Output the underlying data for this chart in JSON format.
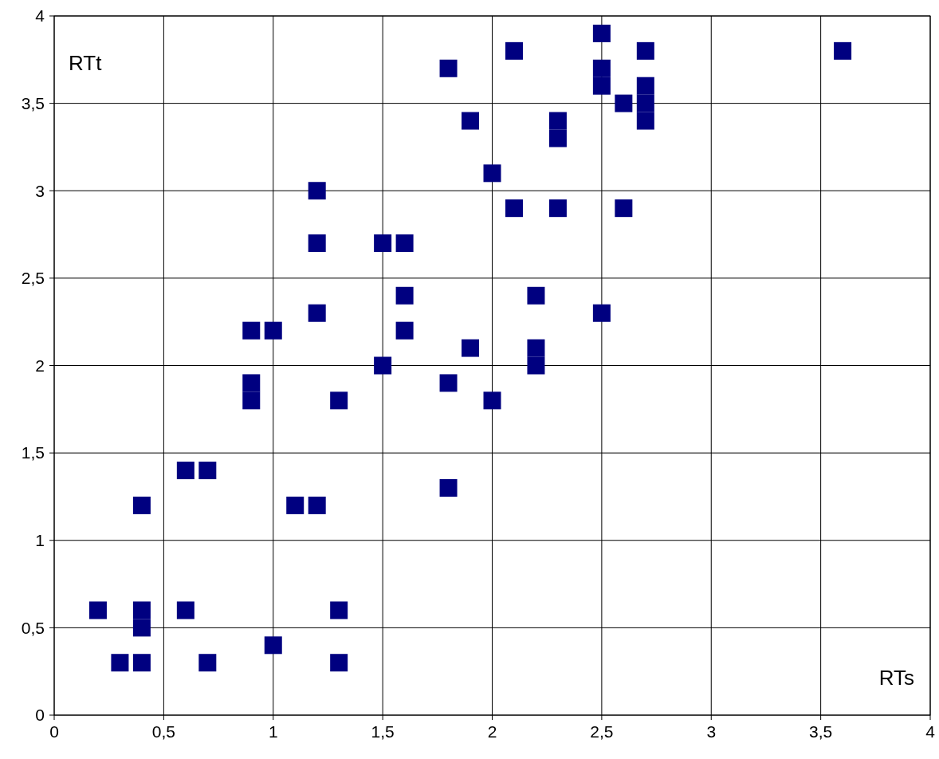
{
  "chart_data": {
    "type": "scatter",
    "xlabel": "RTs",
    "ylabel": "RTt",
    "marker": "square",
    "grid": true,
    "xlim": [
      0,
      4
    ],
    "ylim": [
      0,
      4
    ],
    "xticks": [
      0,
      {
        "value": 0.5,
        "label": "0,5"
      },
      1,
      {
        "value": 1.5,
        "label": "1,5"
      },
      2,
      {
        "value": 2.5,
        "label": "2,5"
      },
      3,
      {
        "value": 3.5,
        "label": "3,5"
      },
      4
    ],
    "yticks": [
      0,
      {
        "value": 0.5,
        "label": "0,5"
      },
      1,
      {
        "value": 1.5,
        "label": "1,5"
      },
      2,
      {
        "value": 2.5,
        "label": "2,5"
      },
      3,
      {
        "value": 3.5,
        "label": "3,5"
      },
      4
    ],
    "series": [
      {
        "color": "#000080",
        "x": [
          0.2,
          0.3,
          0.4,
          0.4,
          0.4,
          0.4,
          0.6,
          0.6,
          0.7,
          0.7,
          0.9,
          0.9,
          0.9,
          1.0,
          1.0,
          1.1,
          1.2,
          1.2,
          1.2,
          1.2,
          1.3,
          1.3,
          1.3,
          1.5,
          1.5,
          1.6,
          1.6,
          1.6,
          1.8,
          1.8,
          1.8,
          1.9,
          1.9,
          2.0,
          2.0,
          2.1,
          2.1,
          2.2,
          2.2,
          2.2,
          2.3,
          2.3,
          2.3,
          2.5,
          2.5,
          2.5,
          2.5,
          2.6,
          2.6,
          2.7,
          2.7,
          2.7,
          2.7,
          3.6
        ],
        "values": [
          0.6,
          0.3,
          0.3,
          0.5,
          0.6,
          1.2,
          0.6,
          1.4,
          1.4,
          0.3,
          2.2,
          1.8,
          1.9,
          2.2,
          0.4,
          1.2,
          1.2,
          3.0,
          2.7,
          2.3,
          1.8,
          0.6,
          0.3,
          2.7,
          2.0,
          2.7,
          2.4,
          2.2,
          3.7,
          1.9,
          1.3,
          3.4,
          2.1,
          3.1,
          1.8,
          3.8,
          2.9,
          2.4,
          2.1,
          2.0,
          3.4,
          3.3,
          2.9,
          3.9,
          3.7,
          3.6,
          2.3,
          3.5,
          2.9,
          3.8,
          3.6,
          3.5,
          3.4,
          3.8
        ]
      }
    ]
  }
}
